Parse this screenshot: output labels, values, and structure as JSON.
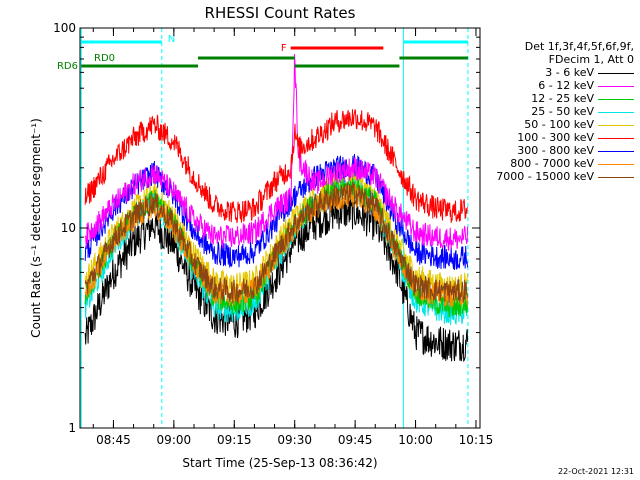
{
  "chart_data": {
    "type": "line",
    "title": "RHESSI Count Rates",
    "xlabel": "Start Time (25-Sep-13 08:36:42)",
    "ylabel": "Count Rate (s⁻¹ detector segment⁻¹)",
    "yscale": "log",
    "ylim": [
      1,
      100
    ],
    "xlim": [
      "08:36:42",
      "10:16:00"
    ],
    "x_ticks": [
      "08:45",
      "09:00",
      "09:15",
      "09:30",
      "09:45",
      "10:00",
      "10:15"
    ],
    "y_ticks": [
      "1",
      "10",
      "100"
    ],
    "grid": false,
    "legend_position": "right",
    "legend_header": [
      "Det 1f,3f,4f,5f,6f,9f,",
      "FDecim 1, Att 0"
    ],
    "series": [
      {
        "name": "3 - 6 keV",
        "color": "#000000",
        "x": [
          "08:38",
          "08:45",
          "08:50",
          "08:55",
          "09:00",
          "09:05",
          "09:10",
          "09:15",
          "09:20",
          "09:25",
          "09:30",
          "09:35",
          "09:40",
          "09:45",
          "09:50",
          "09:55",
          "10:00",
          "10:05",
          "10:10",
          "10:13"
        ],
        "values": [
          2.8,
          6.0,
          8.5,
          10.5,
          8.2,
          5.0,
          3.6,
          3.4,
          3.8,
          5.6,
          8.5,
          10.5,
          12.0,
          12.0,
          10.5,
          6.5,
          3.0,
          2.7,
          2.6,
          2.7
        ]
      },
      {
        "name": "6 - 12 keV",
        "color": "#ff00ff",
        "x": [
          "08:38",
          "08:45",
          "08:50",
          "08:55",
          "09:00",
          "09:05",
          "09:10",
          "09:15",
          "09:20",
          "09:25",
          "09:29",
          "09:30",
          "09:31",
          "09:35",
          "09:40",
          "09:45",
          "09:50",
          "09:55",
          "10:00",
          "10:05",
          "10:10",
          "10:13"
        ],
        "values": [
          9.0,
          13.0,
          16.5,
          19.0,
          15.0,
          11.0,
          9.0,
          9.0,
          9.5,
          12.5,
          14.0,
          70.0,
          22.0,
          16.5,
          19.0,
          20.0,
          18.0,
          12.5,
          9.5,
          9.0,
          8.8,
          9.0
        ]
      },
      {
        "name": "12 - 25 keV",
        "color": "#00c800",
        "x": [
          "08:38",
          "08:45",
          "08:50",
          "08:55",
          "09:00",
          "09:05",
          "09:10",
          "09:15",
          "09:20",
          "09:25",
          "09:30",
          "09:35",
          "09:40",
          "09:45",
          "09:50",
          "09:55",
          "10:00",
          "10:05",
          "10:10",
          "10:13"
        ],
        "values": [
          4.5,
          8.5,
          11.5,
          14.0,
          10.5,
          6.5,
          4.5,
          4.2,
          4.5,
          7.0,
          10.5,
          13.5,
          15.5,
          16.0,
          13.5,
          8.0,
          4.8,
          4.2,
          4.0,
          4.2
        ]
      },
      {
        "name": "25 - 50 keV",
        "color": "#00e6e6",
        "x": [
          "08:38",
          "08:45",
          "08:50",
          "08:55",
          "09:00",
          "09:05",
          "09:10",
          "09:15",
          "09:20",
          "09:25",
          "09:30",
          "09:35",
          "09:40",
          "09:45",
          "09:50",
          "09:55",
          "10:00",
          "10:05",
          "10:10",
          "10:13"
        ],
        "values": [
          4.0,
          8.0,
          11.0,
          13.5,
          10.0,
          6.0,
          4.0,
          3.8,
          4.2,
          6.5,
          10.0,
          13.0,
          15.0,
          15.5,
          13.0,
          7.5,
          4.3,
          3.9,
          3.7,
          3.8
        ]
      },
      {
        "name": "50 - 100 keV",
        "color": "#e6c800",
        "x": [
          "08:38",
          "08:45",
          "08:50",
          "08:55",
          "09:00",
          "09:05",
          "09:10",
          "09:15",
          "09:20",
          "09:25",
          "09:30",
          "09:35",
          "09:40",
          "09:45",
          "09:50",
          "09:55",
          "10:00",
          "10:05",
          "10:10",
          "10:13"
        ],
        "values": [
          5.5,
          9.5,
          12.5,
          15.0,
          11.5,
          7.5,
          5.5,
          5.2,
          5.5,
          8.0,
          11.5,
          14.5,
          16.5,
          17.0,
          14.5,
          9.0,
          5.8,
          5.3,
          5.1,
          5.3
        ]
      },
      {
        "name": "100 - 300 keV",
        "color": "#ff0000",
        "x": [
          "08:38",
          "08:45",
          "08:50",
          "08:55",
          "09:00",
          "09:05",
          "09:10",
          "09:15",
          "09:20",
          "09:25",
          "09:29",
          "09:30",
          "09:31",
          "09:35",
          "09:40",
          "09:45",
          "09:50",
          "09:55",
          "10:00",
          "10:05",
          "10:10",
          "10:13"
        ],
        "values": [
          14.0,
          22.0,
          28.0,
          33.0,
          27.0,
          18.0,
          13.0,
          12.0,
          12.5,
          17.0,
          20.0,
          30.0,
          25.0,
          28.0,
          34.0,
          36.0,
          32.0,
          21.0,
          14.0,
          12.5,
          12.0,
          12.5
        ]
      },
      {
        "name": "300 - 800 keV",
        "color": "#0000ff",
        "x": [
          "08:38",
          "08:45",
          "08:50",
          "08:55",
          "09:00",
          "09:05",
          "09:10",
          "09:15",
          "09:20",
          "09:25",
          "09:30",
          "09:35",
          "09:40",
          "09:45",
          "09:50",
          "09:55",
          "10:00",
          "10:05",
          "10:10",
          "10:13"
        ],
        "values": [
          7.5,
          12.5,
          16.0,
          19.0,
          14.5,
          9.5,
          7.5,
          7.2,
          7.6,
          10.5,
          14.5,
          18.0,
          20.0,
          20.5,
          18.0,
          11.0,
          7.6,
          7.2,
          7.0,
          7.2
        ]
      },
      {
        "name": "800 - 7000 keV",
        "color": "#ff8c00",
        "x": [
          "08:38",
          "08:45",
          "08:50",
          "08:55",
          "09:00",
          "09:05",
          "09:10",
          "09:15",
          "09:20",
          "09:25",
          "09:30",
          "09:35",
          "09:40",
          "09:45",
          "09:50",
          "09:55",
          "10:00",
          "10:05",
          "10:10",
          "10:13"
        ],
        "values": [
          4.8,
          8.5,
          11.0,
          13.0,
          10.0,
          6.5,
          4.8,
          4.6,
          4.9,
          7.0,
          10.0,
          12.5,
          14.0,
          14.5,
          12.5,
          7.8,
          5.0,
          4.7,
          4.6,
          4.7
        ]
      },
      {
        "name": "7000 - 15000 keV",
        "color": "#8b4513",
        "x": [
          "08:38",
          "08:45",
          "08:50",
          "08:55",
          "09:00",
          "09:05",
          "09:10",
          "09:15",
          "09:20",
          "09:25",
          "09:30",
          "09:35",
          "09:40",
          "09:45",
          "09:50",
          "09:55",
          "10:00",
          "10:05",
          "10:10",
          "10:13"
        ],
        "values": [
          5.0,
          8.8,
          11.5,
          13.5,
          10.5,
          6.8,
          5.0,
          4.8,
          5.1,
          7.3,
          10.5,
          13.0,
          14.5,
          15.0,
          13.0,
          8.0,
          5.2,
          4.9,
          4.8,
          4.9
        ]
      }
    ],
    "flag_bars": [
      {
        "label": "N",
        "color": "#00ffff",
        "segments": [
          [
            "08:37",
            "08:57"
          ],
          [
            "09:57",
            "10:13"
          ]
        ]
      },
      {
        "label": "F",
        "color": "#ff0000",
        "segments": [
          [
            "09:29",
            "09:52"
          ]
        ]
      },
      {
        "label": "RD0",
        "color": "#008000",
        "segments": [
          [
            "09:06",
            "09:30"
          ],
          [
            "09:56",
            "10:13"
          ]
        ]
      },
      {
        "label": "RD6",
        "color": "#008000",
        "segments": [
          [
            "08:37",
            "09:06"
          ],
          [
            "09:30",
            "09:56"
          ]
        ]
      }
    ],
    "vertical_markers": [
      {
        "time": "08:37",
        "color": "#00ffff",
        "style": "solid"
      },
      {
        "time": "08:57",
        "color": "#00ffff",
        "style": "dashed"
      },
      {
        "time": "09:57",
        "color": "#00ffff",
        "style": "solid"
      },
      {
        "time": "10:13",
        "color": "#00ffff",
        "style": "dashed"
      }
    ],
    "timestamp": "22-Oct-2021 12:31"
  }
}
